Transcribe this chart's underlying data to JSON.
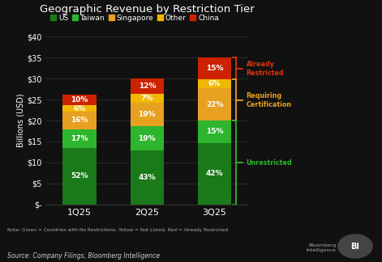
{
  "title": "Geographic Revenue by Restriction Tier",
  "background_color": "#111111",
  "plot_bg_color": "#111111",
  "quarters": [
    "1Q25",
    "2Q25",
    "3Q25"
  ],
  "categories": [
    "US",
    "Taiwan",
    "Singapore",
    "Other",
    "China"
  ],
  "colors": {
    "US": "#1a7a1a",
    "Taiwan": "#2db52d",
    "Singapore": "#e8a020",
    "Other": "#f0b800",
    "China": "#cc2200"
  },
  "values": {
    "US": [
      52,
      43,
      42
    ],
    "Taiwan": [
      17,
      19,
      15
    ],
    "Singapore": [
      16,
      19,
      22
    ],
    "Other": [
      6,
      7,
      6
    ],
    "China": [
      10,
      12,
      15
    ]
  },
  "totals": [
    26,
    30,
    35
  ],
  "ylabel": "Billions (USD)",
  "yticks": [
    0,
    5,
    10,
    15,
    20,
    25,
    30,
    35,
    40
  ],
  "ytick_labels": [
    "$-",
    "$5",
    "$10",
    "$15",
    "$20",
    "$25",
    "$30",
    "$35",
    "$40"
  ],
  "note": "Note: Green = Countries with No Restrictions, Yellow = Not Listed, Red = Already Restricted",
  "source": "Source: Company Filings, Bloomberg Intelligence",
  "annotation_already": "Already\nRestricted",
  "annotation_certif": "Requiring\nCertification",
  "annotation_unrestr": "Unrestricted",
  "bracket_colors": {
    "already": "#dd3311",
    "certif": "#e8a020",
    "unrestr": "#2db52d"
  },
  "text_color": "#ffffff",
  "grid_color": "#333333",
  "legend_colors": {
    "US": "#1a7a1a",
    "Taiwan": "#2db52d",
    "Singapore": "#e8a020",
    "Other": "#f0b800",
    "China": "#cc2200"
  }
}
